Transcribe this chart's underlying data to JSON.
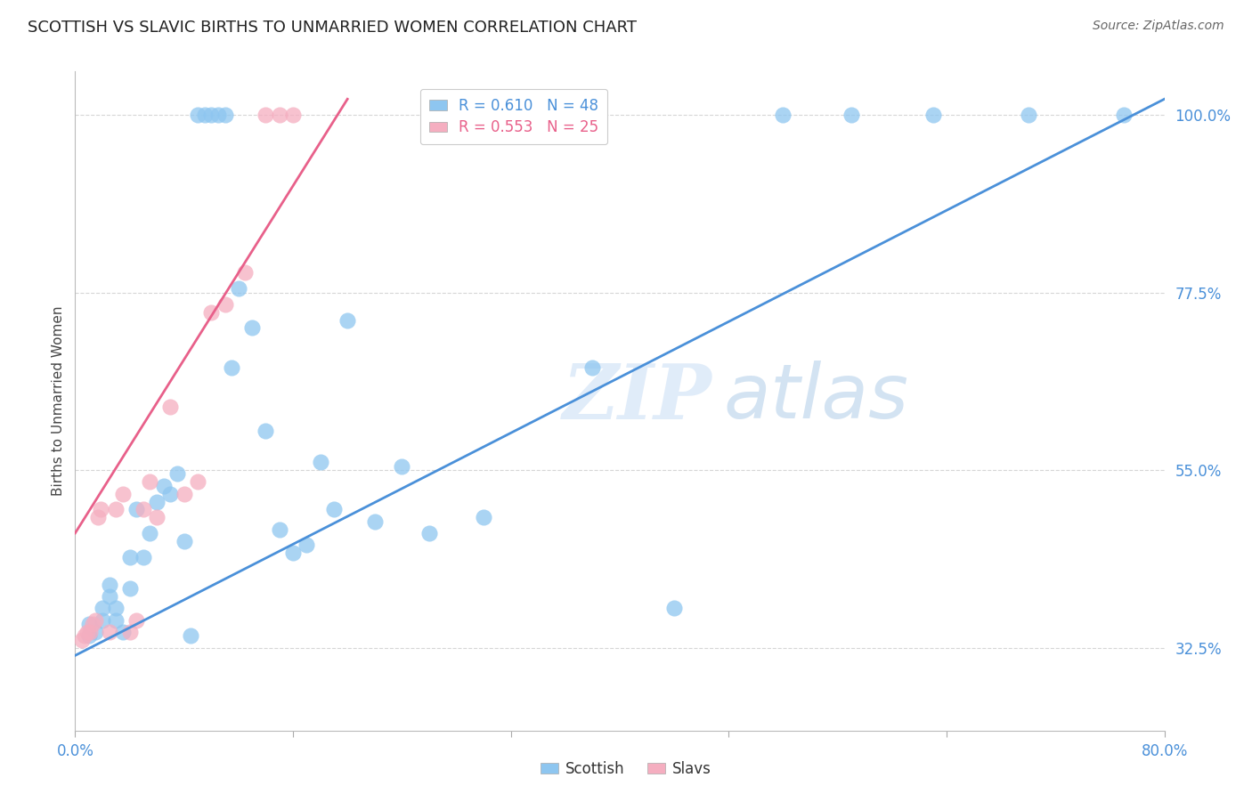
{
  "title": "SCOTTISH VS SLAVIC BIRTHS TO UNMARRIED WOMEN CORRELATION CHART",
  "source": "Source: ZipAtlas.com",
  "ylabel": "Births to Unmarried Women",
  "yticks": [
    0.325,
    0.55,
    0.775,
    1.0
  ],
  "ytick_labels": [
    "32.5%",
    "55.0%",
    "77.5%",
    "100.0%"
  ],
  "xticks": [
    0.0,
    0.16,
    0.32,
    0.48,
    0.64,
    0.8
  ],
  "xtick_labels": [
    "0.0%",
    "",
    "",
    "",
    "",
    "80.0%"
  ],
  "xmin": 0.0,
  "xmax": 0.8,
  "ymin": 0.22,
  "ymax": 1.055,
  "watermark_zip": "ZIP",
  "watermark_atlas": "atlas",
  "scottish_R": 0.61,
  "scottish_N": 48,
  "slavic_R": 0.553,
  "slavic_N": 25,
  "scottish_color": "#8ec6f0",
  "slavic_color": "#f5aec0",
  "scottish_line_color": "#4a90d9",
  "slavic_line_color": "#e8608a",
  "scottish_line_x": [
    0.0,
    0.8
  ],
  "scottish_line_y": [
    0.315,
    1.02
  ],
  "slavic_line_x": [
    0.0,
    0.2
  ],
  "slavic_line_y": [
    0.47,
    1.02
  ],
  "scottish_x": [
    0.01,
    0.01,
    0.015,
    0.02,
    0.02,
    0.025,
    0.025,
    0.03,
    0.03,
    0.035,
    0.04,
    0.04,
    0.045,
    0.05,
    0.055,
    0.06,
    0.065,
    0.07,
    0.075,
    0.08,
    0.085,
    0.09,
    0.095,
    0.1,
    0.105,
    0.11,
    0.115,
    0.12,
    0.13,
    0.14,
    0.15,
    0.16,
    0.17,
    0.18,
    0.19,
    0.2,
    0.22,
    0.24,
    0.26,
    0.3,
    0.35,
    0.38,
    0.44,
    0.52,
    0.57,
    0.63,
    0.7,
    0.77
  ],
  "scottish_y": [
    0.34,
    0.355,
    0.345,
    0.36,
    0.375,
    0.39,
    0.405,
    0.36,
    0.375,
    0.345,
    0.4,
    0.44,
    0.5,
    0.44,
    0.47,
    0.51,
    0.53,
    0.52,
    0.545,
    0.46,
    0.34,
    1.0,
    1.0,
    1.0,
    1.0,
    1.0,
    0.68,
    0.78,
    0.73,
    0.6,
    0.475,
    0.445,
    0.455,
    0.56,
    0.5,
    0.74,
    0.485,
    0.555,
    0.47,
    0.49,
    1.0,
    0.68,
    0.375,
    1.0,
    1.0,
    1.0,
    1.0,
    1.0
  ],
  "slavic_x": [
    0.005,
    0.007,
    0.009,
    0.011,
    0.013,
    0.015,
    0.017,
    0.019,
    0.025,
    0.03,
    0.035,
    0.04,
    0.045,
    0.05,
    0.055,
    0.06,
    0.07,
    0.08,
    0.09,
    0.1,
    0.11,
    0.125,
    0.14,
    0.15,
    0.16
  ],
  "slavic_y": [
    0.335,
    0.34,
    0.345,
    0.345,
    0.355,
    0.36,
    0.49,
    0.5,
    0.345,
    0.5,
    0.52,
    0.345,
    0.36,
    0.5,
    0.535,
    0.49,
    0.63,
    0.52,
    0.535,
    0.75,
    0.76,
    0.8,
    1.0,
    1.0,
    1.0
  ],
  "background_color": "#ffffff",
  "grid_color": "#cccccc"
}
